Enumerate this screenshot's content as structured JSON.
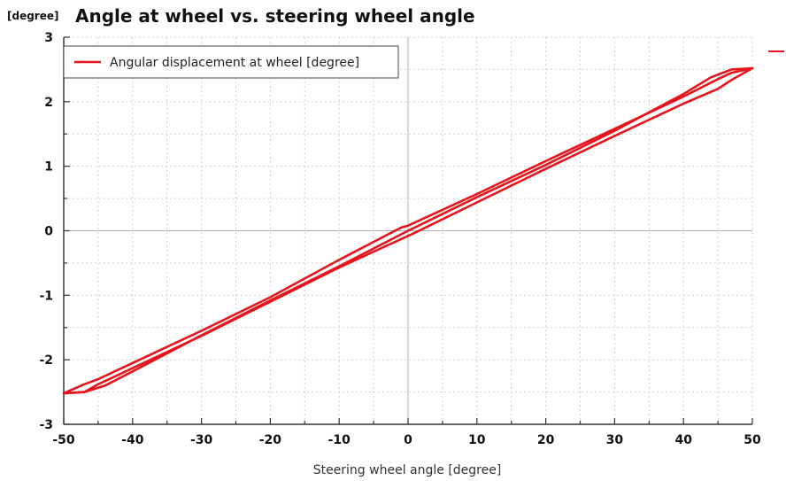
{
  "chart_data": {
    "type": "line",
    "title": "Angle at wheel vs. steering wheel angle",
    "ylabel": "[degree]",
    "xlabel": "Steering wheel angle [degree]",
    "xlim": [
      -50,
      50
    ],
    "ylim": [
      -3,
      3
    ],
    "x_ticks": [
      -50,
      -40,
      -30,
      -20,
      -10,
      0,
      10,
      20,
      30,
      40,
      50
    ],
    "y_ticks": [
      -3,
      -2,
      -1,
      0,
      1,
      2,
      3
    ],
    "x_tick_labels": [
      "-50",
      "-40",
      "-30",
      "-20",
      "-10",
      "0",
      "10",
      "20",
      "30",
      "40",
      "50"
    ],
    "y_tick_labels": [
      "-3",
      "-2",
      "-1",
      "0",
      "1",
      "2",
      "3"
    ],
    "grid": true,
    "legend_position": "top-left",
    "series": [
      {
        "name": "Angular displacement at wheel [degree]",
        "color": "#e8141c",
        "segments": [
          {
            "x": [
              -50,
              -47,
              -45,
              -40,
              -30,
              -20,
              -10,
              -1,
              0,
              10,
              20,
              30,
              40,
              45,
              47,
              50
            ],
            "y": [
              -2.52,
              -2.38,
              -2.3,
              -2.05,
              -1.55,
              -1.03,
              -0.45,
              0.05,
              0.08,
              0.57,
              1.08,
              1.58,
              2.08,
              2.35,
              2.45,
              2.52
            ]
          },
          {
            "x": [
              50,
              47,
              45,
              40,
              30,
              20,
              10,
              1,
              0,
              -10,
              -20,
              -30,
              -40,
              -45,
              -47,
              -50
            ],
            "y": [
              2.52,
              2.34,
              2.2,
              1.97,
              1.47,
              0.96,
              0.44,
              -0.03,
              -0.08,
              -0.57,
              -1.1,
              -1.63,
              -2.13,
              -2.38,
              -2.5,
              -2.52
            ]
          },
          {
            "x": [
              -50,
              -47,
              -44,
              -40,
              -30,
              -20,
              -10,
              0,
              10,
              20,
              30,
              40,
              44,
              47,
              50
            ],
            "y": [
              -2.52,
              -2.5,
              -2.4,
              -2.18,
              -1.62,
              -1.08,
              -0.55,
              0.0,
              0.52,
              1.02,
              1.55,
              2.12,
              2.38,
              2.5,
              2.52
            ]
          }
        ]
      }
    ]
  }
}
